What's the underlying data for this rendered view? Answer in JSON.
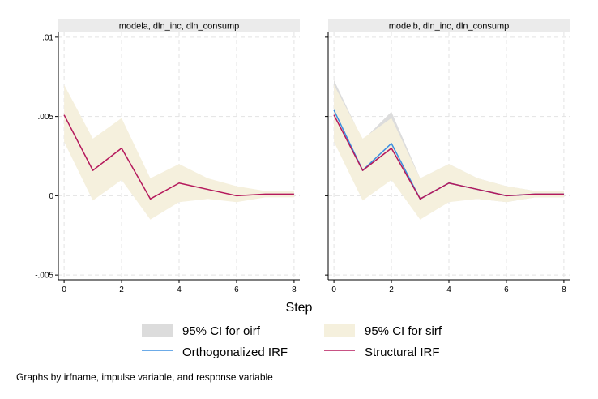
{
  "chart_data": {
    "type": "line",
    "xlabel": "Step",
    "x_ticks": [
      0,
      2,
      4,
      6,
      8
    ],
    "y_ticks": [
      0.01,
      0.005,
      0,
      -0.005
    ],
    "y_tick_labels": [
      ".01",
      ".005",
      "0",
      "-.005"
    ],
    "ylim": [
      -0.0053,
      0.0103
    ],
    "xlim": [
      -0.2,
      8.2
    ],
    "grid": true,
    "legend_position": "bottom",
    "colors": {
      "ci_oirf": "#dcdcdc",
      "ci_sirf": "#f5f0dd",
      "oirf": "#3c8fe0",
      "sirf": "#b5195c",
      "strip": "#ebebeb"
    },
    "panels": [
      {
        "title": "modela, dln_inc, dln_consump",
        "x": [
          0,
          1,
          2,
          3,
          4,
          5,
          6,
          7,
          8
        ],
        "sirf": [
          0.0051,
          0.0016,
          0.003,
          -0.0002,
          0.0008,
          0.0004,
          0.0,
          0.0001,
          0.0001
        ],
        "sirf_ci_lower": [
          0.0034,
          -0.0003,
          0.001,
          -0.0015,
          -0.0004,
          -0.0002,
          -0.0004,
          -0.0001,
          -0.0001
        ],
        "sirf_ci_upper": [
          0.007,
          0.0036,
          0.0049,
          0.0011,
          0.002,
          0.0011,
          0.0006,
          0.0003,
          0.0003
        ]
      },
      {
        "title": "modelb, dln_inc, dln_consump",
        "x": [
          0,
          1,
          2,
          3,
          4,
          5,
          6,
          7,
          8
        ],
        "oirf": [
          0.0054,
          0.0016,
          0.0033,
          -0.0002,
          0.0008,
          0.0004,
          0.0,
          0.0001,
          0.0001
        ],
        "oirf_ci_lower": [
          0.0036,
          -0.0002,
          0.0012,
          -0.0014,
          -0.0003,
          -0.0002,
          -0.0004,
          -0.0001,
          -0.0001
        ],
        "oirf_ci_upper": [
          0.0073,
          0.0035,
          0.0053,
          0.0011,
          0.002,
          0.0011,
          0.0006,
          0.0003,
          0.0003
        ],
        "sirf": [
          0.0051,
          0.0016,
          0.003,
          -0.0002,
          0.0008,
          0.0004,
          0.0,
          0.0001,
          0.0001
        ],
        "sirf_ci_lower": [
          0.0034,
          -0.0003,
          0.001,
          -0.0015,
          -0.0004,
          -0.0002,
          -0.0004,
          -0.0001,
          -0.0001
        ],
        "sirf_ci_upper": [
          0.007,
          0.0036,
          0.0049,
          0.0011,
          0.002,
          0.0011,
          0.0006,
          0.0003,
          0.0003
        ]
      }
    ],
    "legend": [
      {
        "key": "ci_oirf",
        "label": "95% CI for oirf",
        "kind": "area"
      },
      {
        "key": "ci_sirf",
        "label": "95% CI for sirf",
        "kind": "area"
      },
      {
        "key": "oirf",
        "label": "Orthogonalized IRF",
        "kind": "line"
      },
      {
        "key": "sirf",
        "label": "Structural IRF",
        "kind": "line"
      }
    ],
    "note": "Graphs by irfname, impulse variable, and response variable"
  }
}
